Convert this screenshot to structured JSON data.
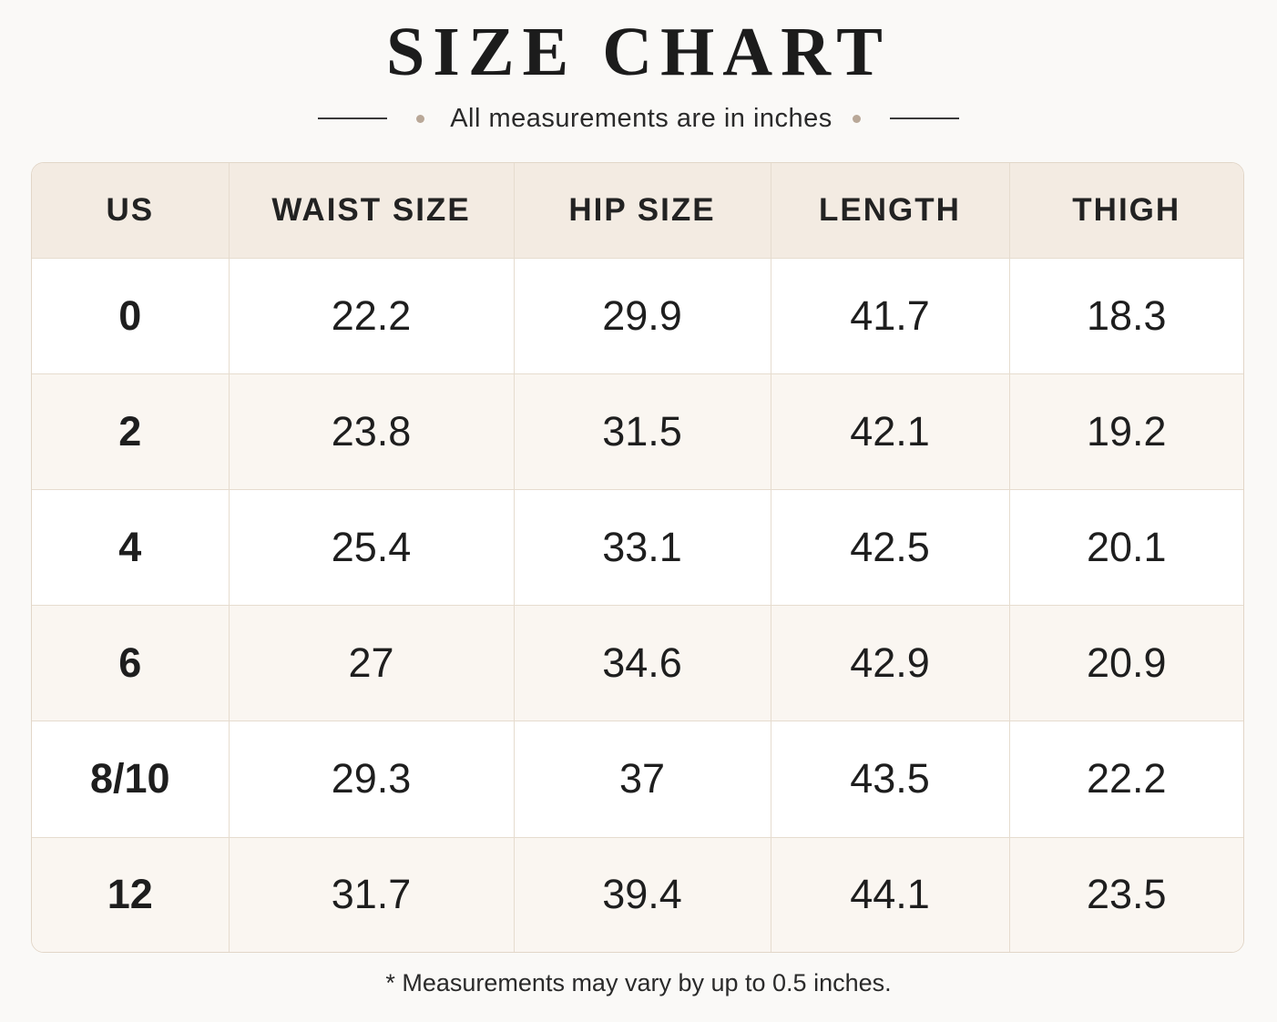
{
  "header": {
    "title": "SIZE CHART",
    "subtitle": "All measurements are in inches"
  },
  "table": {
    "columns": [
      "US",
      "WAIST SIZE",
      "HIP SIZE",
      "LENGTH",
      "THIGH"
    ],
    "rows": [
      [
        "0",
        "22.2",
        "29.9",
        "41.7",
        "18.3"
      ],
      [
        "2",
        "23.8",
        "31.5",
        "42.1",
        "19.2"
      ],
      [
        "4",
        "25.4",
        "33.1",
        "42.5",
        "20.1"
      ],
      [
        "6",
        "27",
        "34.6",
        "42.9",
        "20.9"
      ],
      [
        "8/10",
        "29.3",
        "37",
        "43.5",
        "22.2"
      ],
      [
        "12",
        "31.7",
        "39.4",
        "44.1",
        "23.5"
      ]
    ]
  },
  "footnote": "* Measurements may vary by up to 0.5 inches."
}
